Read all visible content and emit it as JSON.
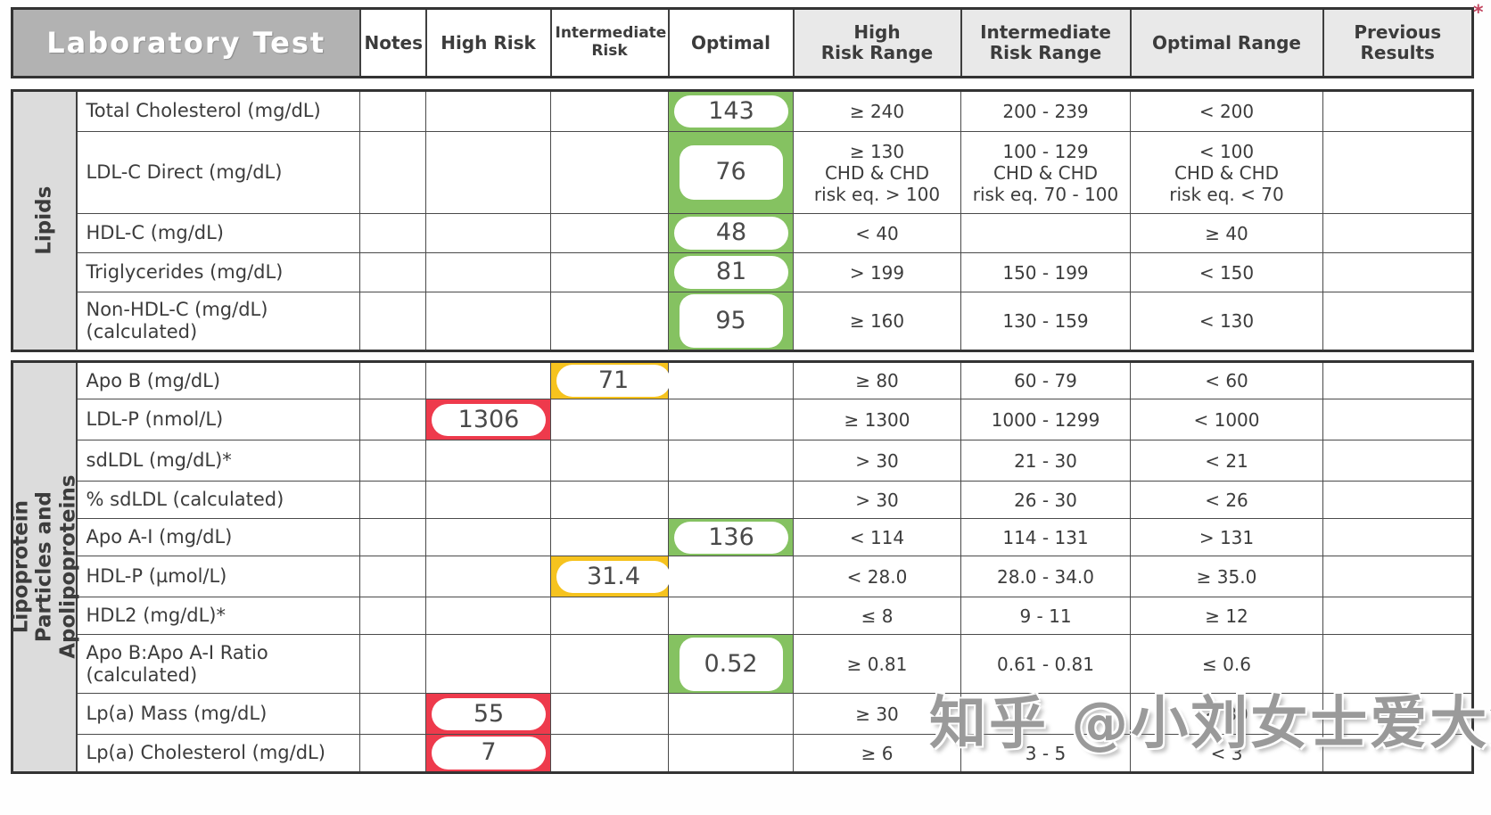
{
  "header": {
    "title": "Laboratory Test",
    "notes": "Notes",
    "high_risk": "High Risk",
    "intermediate_risk": "Intermediate\nRisk",
    "optimal": "Optimal",
    "high_risk_range": "High\nRisk Range",
    "intermediate_risk_range": "Intermediate\nRisk Range",
    "optimal_range": "Optimal Range",
    "previous_results": "Previous\nResults",
    "corner_mark": "*"
  },
  "colors": {
    "optimal": "#85c261",
    "intermediate": "#f6c31e",
    "high": "#ee3a4c"
  },
  "sections": [
    {
      "label": "Lipids",
      "rows": [
        {
          "test": "Total Cholesterol (mg/dL)",
          "notes": "",
          "result": {
            "value": "143",
            "level": "optimal"
          },
          "high_risk_range": "≥ 240",
          "intermediate_risk_range": "200 - 239",
          "optimal_range": "< 200",
          "previous_results": ""
        },
        {
          "test": "LDL-C Direct (mg/dL)",
          "notes": "",
          "result": {
            "value": "76",
            "level": "optimal"
          },
          "high_risk_range": "≥ 130\nCHD & CHD\nrisk eq. > 100",
          "intermediate_risk_range": "100 - 129\nCHD & CHD\nrisk eq. 70 - 100",
          "optimal_range": "< 100\nCHD & CHD\nrisk eq. < 70",
          "previous_results": ""
        },
        {
          "test": "HDL-C (mg/dL)",
          "notes": "",
          "result": {
            "value": "48",
            "level": "optimal"
          },
          "high_risk_range": "< 40",
          "intermediate_risk_range": "",
          "optimal_range": "≥ 40",
          "previous_results": ""
        },
        {
          "test": "Triglycerides (mg/dL)",
          "notes": "",
          "result": {
            "value": "81",
            "level": "optimal"
          },
          "high_risk_range": "> 199",
          "intermediate_risk_range": "150 - 199",
          "optimal_range": "< 150",
          "previous_results": ""
        },
        {
          "test": "Non-HDL-C (mg/dL)\n(calculated)",
          "notes": "",
          "result": {
            "value": "95",
            "level": "optimal"
          },
          "high_risk_range": "≥ 160",
          "intermediate_risk_range": "130 - 159",
          "optimal_range": "< 130",
          "previous_results": ""
        }
      ]
    },
    {
      "label": "Lipoprotein Particles and\nApolipoproteins",
      "rows": [
        {
          "test": "Apo B (mg/dL)",
          "notes": "",
          "result": {
            "value": "71",
            "level": "intermediate"
          },
          "high_risk_range": "≥ 80",
          "intermediate_risk_range": "60 - 79",
          "optimal_range": "< 60",
          "previous_results": ""
        },
        {
          "test": "LDL-P (nmol/L)",
          "notes": "",
          "result": {
            "value": "1306",
            "level": "high"
          },
          "high_risk_range": "≥ 1300",
          "intermediate_risk_range": "1000 - 1299",
          "optimal_range": "< 1000",
          "previous_results": ""
        },
        {
          "test": "sdLDL (mg/dL)*",
          "notes": "",
          "result": null,
          "high_risk_range": "> 30",
          "intermediate_risk_range": "21 - 30",
          "optimal_range": "< 21",
          "previous_results": ""
        },
        {
          "test": "% sdLDL (calculated)",
          "notes": "",
          "result": null,
          "high_risk_range": "> 30",
          "intermediate_risk_range": "26 - 30",
          "optimal_range": "< 26",
          "previous_results": ""
        },
        {
          "test": "Apo A-I (mg/dL)",
          "notes": "",
          "result": {
            "value": "136",
            "level": "optimal"
          },
          "high_risk_range": "< 114",
          "intermediate_risk_range": "114 - 131",
          "optimal_range": "> 131",
          "previous_results": ""
        },
        {
          "test": "HDL-P (µmol/L)",
          "notes": "",
          "result": {
            "value": "31.4",
            "level": "intermediate"
          },
          "high_risk_range": "< 28.0",
          "intermediate_risk_range": "28.0 - 34.0",
          "optimal_range": "≥ 35.0",
          "previous_results": ""
        },
        {
          "test": "HDL2 (mg/dL)*",
          "notes": "",
          "result": null,
          "high_risk_range": "≤ 8",
          "intermediate_risk_range": "9 - 11",
          "optimal_range": "≥ 12",
          "previous_results": ""
        },
        {
          "test": "Apo B:Apo A-I Ratio\n(calculated)",
          "notes": "",
          "result": {
            "value": "0.52",
            "level": "optimal"
          },
          "high_risk_range": "≥ 0.81",
          "intermediate_risk_range": "0.61 - 0.81",
          "optimal_range": "≤ 0.6",
          "previous_results": ""
        },
        {
          "test": "Lp(a) Mass (mg/dL)",
          "notes": "",
          "result": {
            "value": "55",
            "level": "high"
          },
          "high_risk_range": "≥ 30",
          "intermediate_risk_range": "",
          "optimal_range": "< 30",
          "previous_results": ""
        },
        {
          "test": "Lp(a) Cholesterol (mg/dL)",
          "notes": "",
          "result": {
            "value": "7",
            "level": "high"
          },
          "high_risk_range": "≥ 6",
          "intermediate_risk_range": "3 - 5",
          "optimal_range": "< 3",
          "previous_results": ""
        }
      ]
    }
  ],
  "watermark": {
    "text": "知乎 @小刘女士爱大笑"
  }
}
